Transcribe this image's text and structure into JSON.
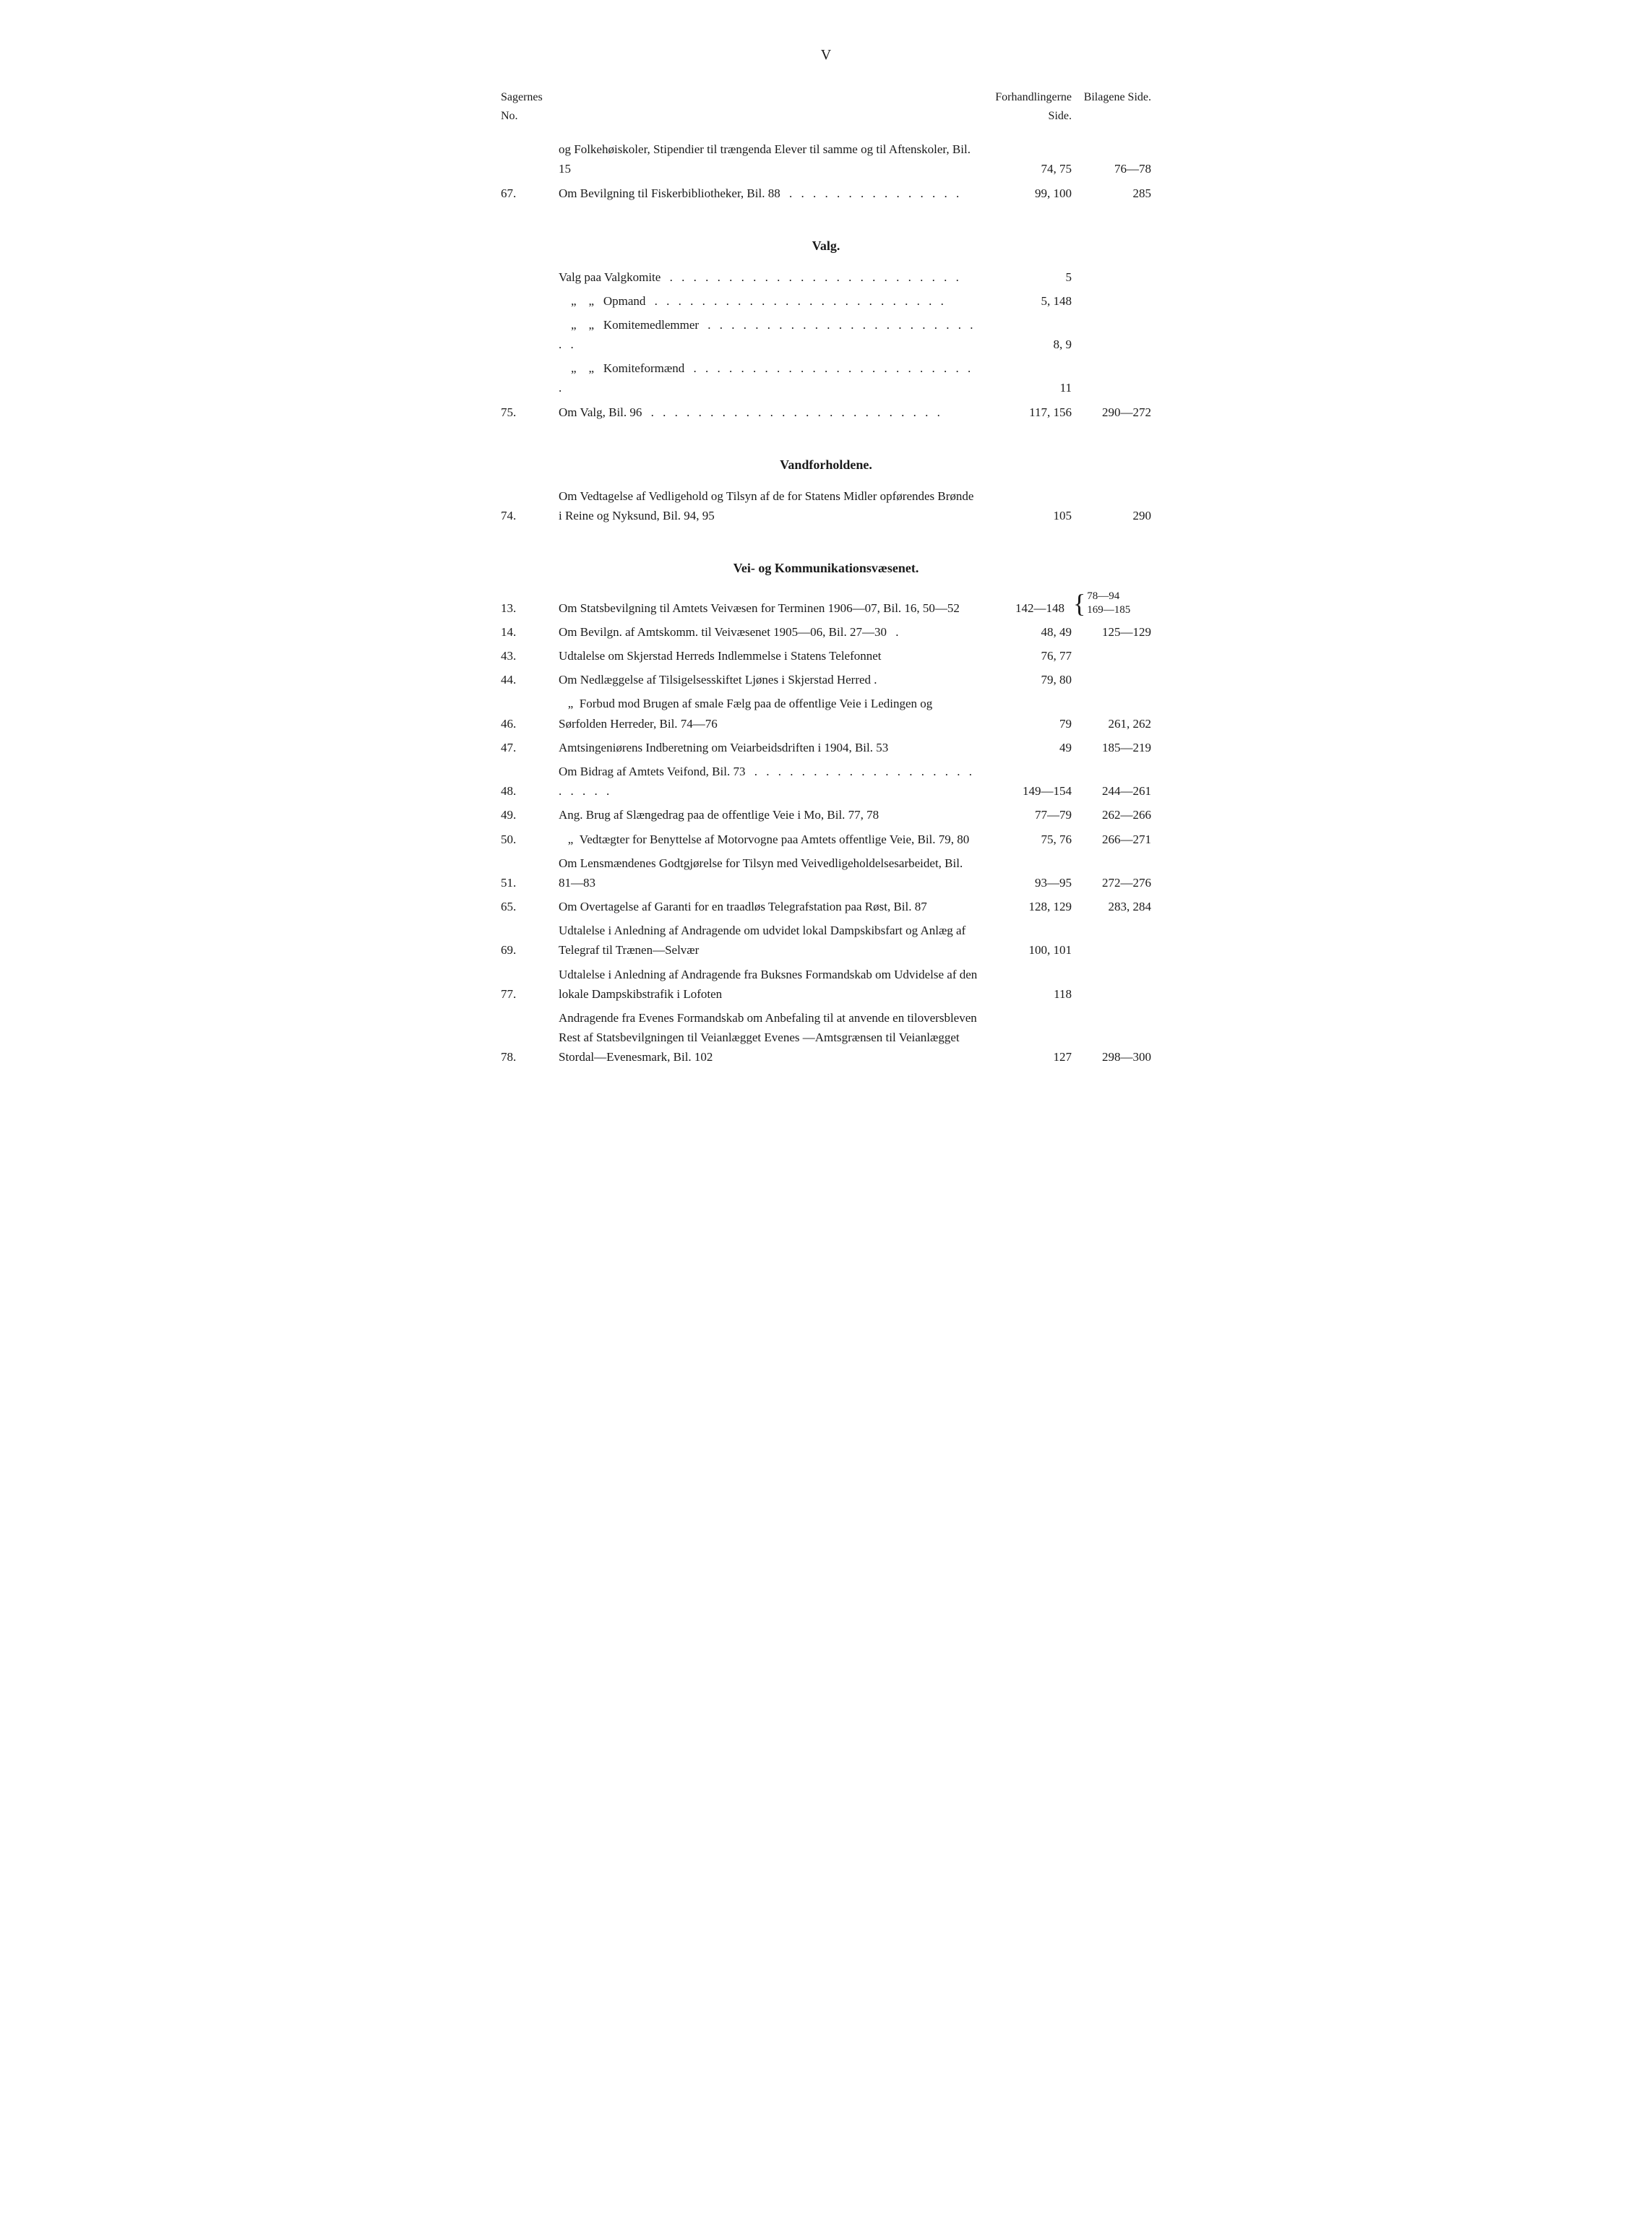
{
  "page_number": "V",
  "headers": {
    "no": "Sagernes No.",
    "sides": "Forhandlingerne Side.",
    "bilag": "Bilagene Side."
  },
  "top_entries": [
    {
      "no": "",
      "desc": "og Folkehøiskoler, Stipendier til trængenda Elever til samme og til Aftenskoler, Bil. 15",
      "sides": "74, 75",
      "bilag": "76—78"
    },
    {
      "no": "67.",
      "desc": "Om Bevilgning til Fiskerbibliotheker, Bil. 88",
      "sides": "99, 100",
      "bilag": "285"
    }
  ],
  "sections": [
    {
      "title": "Valg.",
      "entries": [
        {
          "no": "",
          "desc": "Valg paa Valgkomite",
          "sides": "5",
          "bilag": "",
          "indent": false
        },
        {
          "no": "",
          "desc": "    „    „   Opmand",
          "sides": "5, 148",
          "bilag": "",
          "indent": false
        },
        {
          "no": "",
          "desc": "    „    „   Komitemedlemmer",
          "sides": "8, 9",
          "bilag": "",
          "indent": false
        },
        {
          "no": "",
          "desc": "    „    „   Komiteformænd",
          "sides": "11",
          "bilag": "",
          "indent": false
        },
        {
          "no": "75.",
          "desc": "Om Valg, Bil. 96",
          "sides": "117, 156",
          "bilag": "290—272"
        }
      ]
    },
    {
      "title": "Vandforholdene.",
      "entries": [
        {
          "no": "74.",
          "desc": "Om Vedtagelse af Vedligehold og Tilsyn af de for Statens Midler opførendes Brønde i Reine og Nyksund, Bil. 94, 95",
          "sides": "105",
          "bilag": "290"
        }
      ]
    },
    {
      "title": "Vei- og Kommunikationsvæsenet.",
      "entries": [
        {
          "no": "13.",
          "desc": "Om Statsbevilgning til Amtets Veivæsen for Terminen 1906—07, Bil. 16, 50—52",
          "sides": "142—148",
          "bilag": "78—94 169—185",
          "braced": true
        },
        {
          "no": "14.",
          "desc": "Om Bevilgn. af Amtskomm. til Veivæsenet 1905—06, Bil. 27—30",
          "sides": "48, 49",
          "bilag": "125—129"
        },
        {
          "no": "43.",
          "desc": "Udtalelse om Skjerstad Herreds Indlemmelse i Statens Telefonnet",
          "sides": "76, 77",
          "bilag": ""
        },
        {
          "no": "44.",
          "desc": "Om Nedlæggelse af Tilsigelsesskiftet Ljønes i Skjerstad Herred .",
          "sides": "79, 80",
          "bilag": ""
        },
        {
          "no": "46.",
          "desc": "   „  Forbud mod Brugen af smale Fælg paa de offentlige Veie i Ledingen og Sørfolden Herreder, Bil. 74—76",
          "sides": "79",
          "bilag": "261, 262"
        },
        {
          "no": "47.",
          "desc": "Amtsingeniørens Indberetning om Veiarbeidsdriften i 1904, Bil. 53",
          "sides": "49",
          "bilag": "185—219"
        },
        {
          "no": "48.",
          "desc": "Om Bidrag af Amtets Veifond, Bil. 73",
          "sides": "149—154",
          "bilag": "244—261"
        },
        {
          "no": "49.",
          "desc": "Ang. Brug af Slængedrag paa de offentlige Veie i Mo, Bil. 77, 78",
          "sides": "77—79",
          "bilag": "262—266"
        },
        {
          "no": "50.",
          "desc": "   „  Vedtægter for Benyttelse af Motorvogne paa Amtets offentlige Veie, Bil. 79, 80",
          "sides": "75, 76",
          "bilag": "266—271"
        },
        {
          "no": "51.",
          "desc": "Om Lensmændenes Godtgjørelse for Tilsyn med Veivedligeholdelsesarbeidet, Bil. 81—83",
          "sides": "93—95",
          "bilag": "272—276"
        },
        {
          "no": "65.",
          "desc": "Om Overtagelse af Garanti for en traadløs Telegrafstation paa Røst, Bil. 87",
          "sides": "128, 129",
          "bilag": "283, 284"
        },
        {
          "no": "69.",
          "desc": "Udtalelse i Anledning af Andragende om udvidet lokal Dampskibsfart og Anlæg af Telegraf til Trænen—Selvær",
          "sides": "100, 101",
          "bilag": ""
        },
        {
          "no": "77.",
          "desc": "Udtalelse i Anledning af Andragende fra Buksnes Formandskab om Udvidelse af den lokale Dampskibstrafik i Lofoten",
          "sides": "118",
          "bilag": ""
        },
        {
          "no": "78.",
          "desc": "Andragende fra Evenes Formandskab om Anbefaling til at anvende en tiloversbleven Rest af Statsbevilgningen til Veianlægget Evenes —Amtsgrænsen til Veianlægget Stordal—Evenesmark, Bil. 102",
          "sides": "127",
          "bilag": "298—300"
        }
      ]
    }
  ]
}
